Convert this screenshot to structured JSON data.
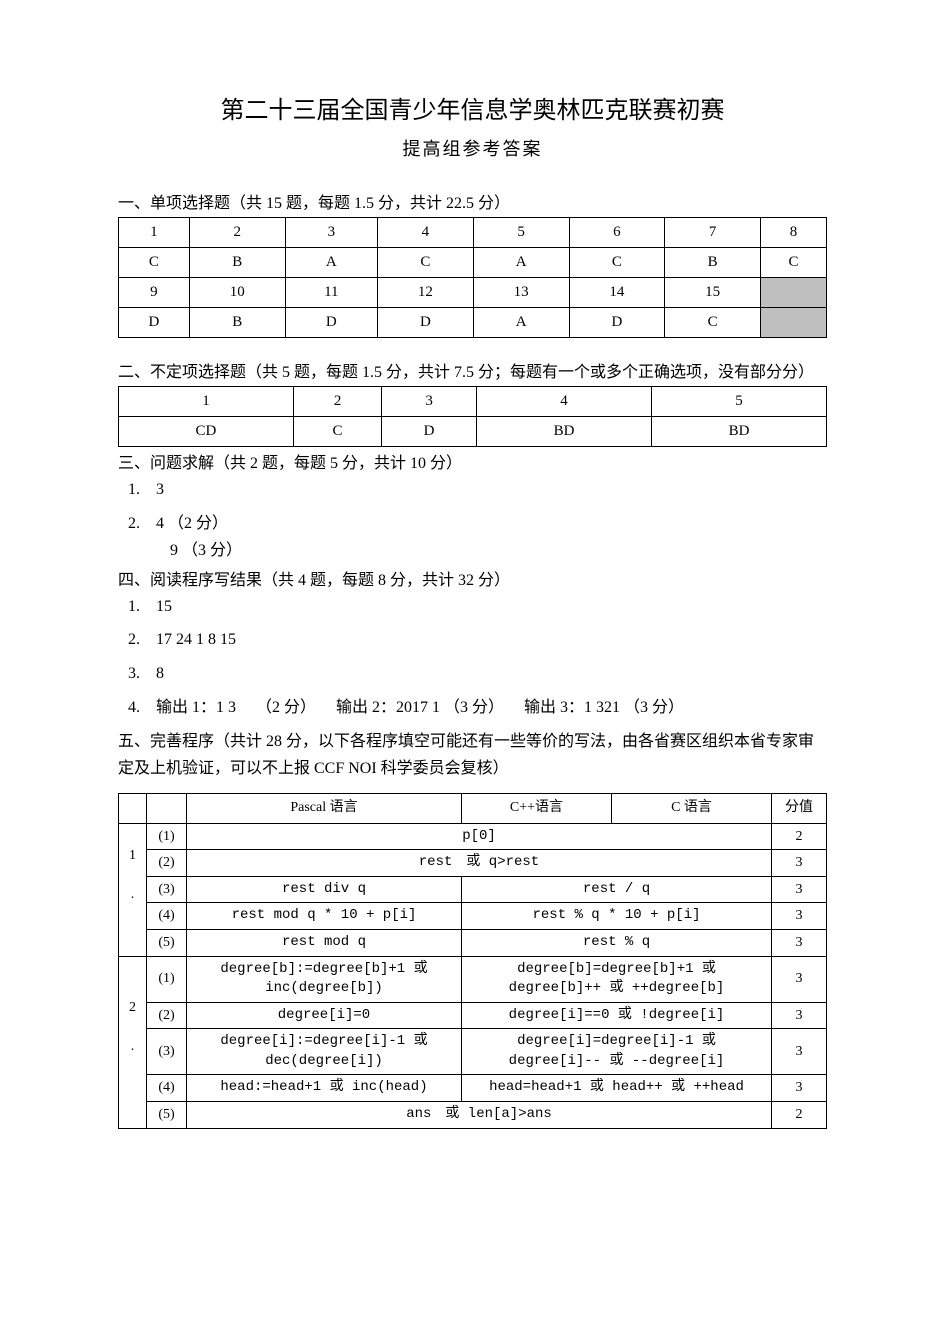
{
  "title": "第二十三届全国青少年信息学奥林匹克联赛初赛",
  "subtitle": "提高组参考答案",
  "s1": {
    "header": "一、单项选择题（共 15 题，每题 1.5 分，共计 22.5 分）",
    "nums1": [
      "1",
      "2",
      "3",
      "4",
      "5",
      "6",
      "7",
      "8"
    ],
    "ans1": [
      "C",
      "B",
      "A",
      "C",
      "A",
      "C",
      "B",
      "C"
    ],
    "nums2": [
      "9",
      "10",
      "11",
      "12",
      "13",
      "14",
      "15"
    ],
    "ans2": [
      "D",
      "B",
      "D",
      "D",
      "A",
      "D",
      "C"
    ]
  },
  "s2": {
    "header": "二、不定项选择题（共 5 题，每题 1.5 分，共计 7.5 分；每题有一个或多个正确选项，没有部分分）",
    "nums": [
      "1",
      "2",
      "3",
      "4",
      "5"
    ],
    "ans": [
      "CD",
      "C",
      "D",
      "BD",
      "BD"
    ]
  },
  "s3": {
    "header": "三、问题求解（共 2 题，每题 5 分，共计 10 分）",
    "i1n": "1.",
    "i1": "3",
    "i2n": "2.",
    "i2a": "4 （2 分）",
    "i2b": "9 （3 分）"
  },
  "s4": {
    "header": "四、阅读程序写结果（共 4 题，每题 8 分，共计 32 分）",
    "i1n": "1.",
    "i1": "15",
    "i2n": "2.",
    "i2": "17 24 1 8 15",
    "i3n": "3.",
    "i3": "8",
    "i4n": "4.",
    "i4": "输出 1：1 3  （2 分）  输出 2：2017 1 （3 分）  输出 3：1 321 （3 分）"
  },
  "s5": {
    "header": "五、完善程序（共计 28 分，以下各程序填空可能还有一些等价的写法，由各省赛区组织本省专家审定及上机验证，可以不上报 CCF NOI 科学委员会复核）",
    "cols": {
      "pascal": "Pascal 语言",
      "cpp": "C++语言",
      "c": "C 语言",
      "score": "分值"
    },
    "rows": [
      {
        "g": "1",
        "sub": "(1)",
        "merged": "p[0]",
        "score": "2"
      },
      {
        "g": ".",
        "sub": "(2)",
        "merged": "rest 或 q>rest",
        "score": "3"
      },
      {
        "g": "",
        "sub": "(3)",
        "p": "rest div q",
        "cc": "rest / q",
        "score": "3"
      },
      {
        "g": "",
        "sub": "(4)",
        "p": "rest mod q * 10 + p[i]",
        "cc": "rest % q * 10 + p[i]",
        "score": "3"
      },
      {
        "g": "",
        "sub": "(5)",
        "p": "rest mod q",
        "cc": "rest % q",
        "score": "3"
      },
      {
        "g": "2",
        "sub": "(1)",
        "p": "degree[b]:=degree[b]+1 或\ninc(degree[b])",
        "cc": "degree[b]=degree[b]+1 或\ndegree[b]++ 或 ++degree[b]",
        "score": "3"
      },
      {
        "g": ".",
        "sub": "(2)",
        "p": "degree[i]=0",
        "cc": "degree[i]==0 或 !degree[i]",
        "score": "3"
      },
      {
        "g": "",
        "sub": "(3)",
        "p": "degree[i]:=degree[i]-1 或\ndec(degree[i])",
        "cc": "degree[i]=degree[i]-1 或\ndegree[i]-- 或 --degree[i]",
        "score": "3"
      },
      {
        "g": "",
        "sub": "(4)",
        "p": "head:=head+1 或 inc(head)",
        "cc": "head=head+1 或 head++ 或 ++head",
        "score": "3"
      },
      {
        "g": "",
        "sub": "(5)",
        "merged": "ans 或 len[a]>ans",
        "score": "2"
      }
    ]
  }
}
